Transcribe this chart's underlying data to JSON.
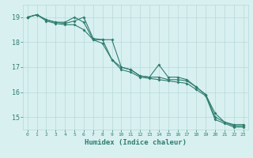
{
  "xlabel": "Humidex (Indice chaleur)",
  "x": [
    0,
    1,
    2,
    3,
    4,
    5,
    6,
    7,
    8,
    9,
    10,
    11,
    12,
    13,
    14,
    15,
    16,
    17,
    18,
    19,
    20,
    21,
    22,
    23
  ],
  "line1": [
    19.0,
    19.1,
    18.9,
    18.8,
    18.8,
    19.0,
    18.8,
    18.1,
    18.1,
    18.1,
    17.0,
    16.9,
    16.65,
    16.6,
    17.1,
    16.6,
    16.6,
    16.5,
    16.2,
    15.9,
    15.15,
    14.8,
    14.7,
    14.7
  ],
  "line2": [
    19.0,
    19.1,
    18.9,
    18.8,
    18.75,
    18.85,
    19.0,
    18.15,
    18.1,
    17.3,
    17.0,
    16.9,
    16.65,
    16.6,
    16.6,
    16.5,
    16.5,
    16.45,
    16.2,
    15.9,
    15.0,
    14.8,
    14.65,
    14.65
  ],
  "line3": [
    19.0,
    19.1,
    18.85,
    18.75,
    18.7,
    18.7,
    18.5,
    18.1,
    17.95,
    17.3,
    16.9,
    16.8,
    16.6,
    16.55,
    16.5,
    16.45,
    16.4,
    16.35,
    16.1,
    15.85,
    14.9,
    14.75,
    14.6,
    14.6
  ],
  "line_color": "#2e7d6e",
  "bg_color": "#d8f0f0",
  "grid_color": "#b8d8d8",
  "ylim": [
    14.5,
    19.5
  ],
  "yticks": [
    15,
    16,
    17,
    18,
    19
  ],
  "xlim": [
    -0.5,
    23.5
  ],
  "tick_color": "#2e7d6e",
  "label_color": "#2e7d6e"
}
